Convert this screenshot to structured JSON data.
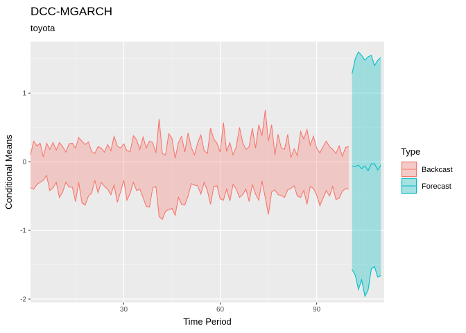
{
  "chart_data": {
    "type": "area",
    "title": "DCC-MGARCH",
    "subtitle": "toyota",
    "xlabel": "Time Period",
    "ylabel": "Conditional Means",
    "xlim": [
      1,
      111
    ],
    "ylim": [
      -2.05,
      1.75
    ],
    "x_ticks": [
      30,
      60,
      90
    ],
    "y_ticks": [
      1,
      0,
      -1,
      -2
    ],
    "grid": true,
    "legend": {
      "title": "Type",
      "placement": "right",
      "entries": [
        {
          "label": "Backcast",
          "line_color": "#F8766D",
          "fill_color": "#F8766D"
        },
        {
          "label": "Forecast",
          "line_color": "#00BFC4",
          "fill_color": "#00BFC4"
        }
      ]
    },
    "series": [
      {
        "name": "Backcast",
        "x_start": 1,
        "upper": [
          0.1,
          0.3,
          0.23,
          0.27,
          0.07,
          0.27,
          0.18,
          0.28,
          0.17,
          0.28,
          0.22,
          0.14,
          0.26,
          0.27,
          0.2,
          0.35,
          0.3,
          0.25,
          0.29,
          0.15,
          0.12,
          0.22,
          0.2,
          0.14,
          0.25,
          0.16,
          0.37,
          0.23,
          0.2,
          0.26,
          0.16,
          0.15,
          0.38,
          0.32,
          0.18,
          0.36,
          0.2,
          0.3,
          0.28,
          0.13,
          0.62,
          0.12,
          0.1,
          0.41,
          0.34,
          0.05,
          0.28,
          0.37,
          0.14,
          0.42,
          0.21,
          0.1,
          0.28,
          0.39,
          0.16,
          0.12,
          0.49,
          0.33,
          0.27,
          0.14,
          0.57,
          0.15,
          0.28,
          0.1,
          0.22,
          0.5,
          0.28,
          0.18,
          0.22,
          0.49,
          0.2,
          0.54,
          0.38,
          0.75,
          0.3,
          0.54,
          0.1,
          0.4,
          0.2,
          0.18,
          0.4,
          0.06,
          0.19,
          0.09,
          0.44,
          0.33,
          0.47,
          0.24,
          0.37,
          0.2,
          0.13,
          0.22,
          0.3,
          0.22,
          0.18,
          0.12,
          0.23,
          0.08,
          0.21,
          0.22
        ],
        "lower": [
          -0.38,
          -0.4,
          -0.33,
          -0.3,
          -0.27,
          -0.2,
          -0.42,
          -0.38,
          -0.3,
          -0.52,
          -0.44,
          -0.3,
          -0.37,
          -0.37,
          -0.58,
          -0.3,
          -0.6,
          -0.63,
          -0.5,
          -0.46,
          -0.27,
          -0.45,
          -0.3,
          -0.36,
          -0.4,
          -0.48,
          -0.34,
          -0.59,
          -0.44,
          -0.27,
          -0.56,
          -0.46,
          -0.3,
          -0.42,
          -0.4,
          -0.52,
          -0.65,
          -0.66,
          -0.38,
          -0.36,
          -0.8,
          -0.84,
          -0.72,
          -0.7,
          -0.68,
          -0.78,
          -0.52,
          -0.62,
          -0.63,
          -0.5,
          -0.32,
          -0.34,
          -0.35,
          -0.47,
          -0.3,
          -0.42,
          -0.62,
          -0.36,
          -0.35,
          -0.54,
          -0.56,
          -0.4,
          -0.57,
          -0.33,
          -0.4,
          -0.52,
          -0.48,
          -0.4,
          -0.58,
          -0.33,
          -0.47,
          -0.56,
          -0.28,
          -0.52,
          -0.77,
          -0.44,
          -0.41,
          -0.48,
          -0.49,
          -0.52,
          -0.41,
          -0.39,
          -0.35,
          -0.5,
          -0.52,
          -0.42,
          -0.62,
          -0.36,
          -0.39,
          -0.48,
          -0.64,
          -0.53,
          -0.42,
          -0.5,
          -0.36,
          -0.55,
          -0.53,
          -0.43,
          -0.39,
          -0.4
        ]
      },
      {
        "name": "Forecast",
        "x_start": 101,
        "upper": [
          1.28,
          1.5,
          1.6,
          1.55,
          1.48,
          1.53,
          1.55,
          1.4,
          1.48,
          1.52
        ],
        "mean": [
          -0.06,
          -0.07,
          -0.05,
          -0.1,
          -0.06,
          -0.13,
          -0.03,
          -0.03,
          -0.12,
          -0.05
        ],
        "lower": [
          -1.57,
          -1.65,
          -1.86,
          -1.72,
          -1.96,
          -1.87,
          -1.56,
          -1.53,
          -1.68,
          -1.66
        ]
      }
    ]
  }
}
